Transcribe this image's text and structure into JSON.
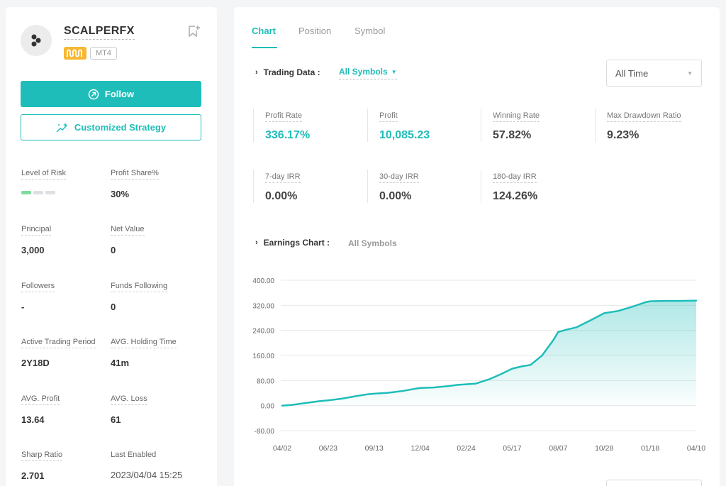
{
  "profile": {
    "name": "SCALPERFX",
    "platform_badge": "MT4",
    "follow_label": "Follow",
    "custom_strategy_label": "Customized Strategy"
  },
  "stats": {
    "risk_label": "Level of Risk",
    "risk_level": 1,
    "risk_max": 3,
    "profit_share_label": "Profit Share%",
    "profit_share": "30%",
    "principal_label": "Principal",
    "principal": "3,000",
    "net_value_label": "Net Value",
    "net_value": "0",
    "followers_label": "Followers",
    "followers": "-",
    "funds_following_label": "Funds Following",
    "funds_following": "0",
    "active_period_label": "Active Trading Period",
    "active_period": "2Y18D",
    "avg_holding_label": "AVG. Holding Time",
    "avg_holding": "41m",
    "avg_profit_label": "AVG. Profit",
    "avg_profit": "13.64",
    "avg_loss_label": "AVG. Loss",
    "avg_loss": "61",
    "sharp_ratio_label": "Sharp Ratio",
    "sharp_ratio": "2.701",
    "last_enabled_label": "Last Enabled",
    "last_enabled": "2023/04/04 15:25"
  },
  "tabs": [
    {
      "label": "Chart",
      "active": true
    },
    {
      "label": "Position",
      "active": false
    },
    {
      "label": "Symbol",
      "active": false
    }
  ],
  "trading_data": {
    "title": "Trading Data :",
    "symbol_filter": "All Symbols",
    "time_filter": "All Time",
    "metrics": [
      {
        "label": "Profit Rate",
        "value": "336.17%"
      },
      {
        "label": "Profit",
        "value": "10,085.23"
      },
      {
        "label": "Winning Rate",
        "value": "57.82%"
      },
      {
        "label": "Max Drawdown Ratio",
        "value": "9.23%"
      },
      {
        "label": "7-day IRR",
        "value": "0.00%"
      },
      {
        "label": "30-day IRR",
        "value": "0.00%"
      },
      {
        "label": "180-day IRR",
        "value": "124.26%"
      }
    ]
  },
  "earnings": {
    "title": "Earnings Chart :",
    "symbol": "All Symbols"
  },
  "colors": {
    "accent": "#1fbdb9",
    "badge_signal": "#f7b733",
    "risk_on": "#7ddc9e"
  },
  "icons": {
    "avatar": "logo-dots-icon",
    "signal": "signal-wave-icon",
    "bookmark": "bookmark-add-icon",
    "follow": "arrow-circle-icon",
    "custom": "sparkle-chart-icon"
  },
  "chart_data": {
    "type": "area",
    "title": "",
    "xlabel": "",
    "ylabel": "",
    "x_ticks": [
      "04/02",
      "06/23",
      "09/13",
      "12/04",
      "02/24",
      "05/17",
      "08/07",
      "10/28",
      "01/18",
      "04/10"
    ],
    "y_ticks": [
      "400.00",
      "320.00",
      "240.00",
      "160.00",
      "80.00",
      "0.00",
      "-80.00"
    ],
    "ylim": [
      -80,
      400
    ],
    "grid": true,
    "series": [
      {
        "x": [
          0,
          0.2,
          0.5,
          0.8,
          1.0,
          1.3,
          1.6,
          1.85,
          2.0,
          2.3,
          2.6,
          2.9,
          3.0,
          3.3,
          3.6,
          3.8,
          4.0,
          4.2,
          4.5,
          4.75,
          5.0,
          5.2,
          5.4,
          5.65,
          5.9,
          6.0,
          6.2,
          6.4,
          6.7,
          7.0,
          7.3,
          7.6,
          7.9,
          8.0,
          8.3,
          8.6,
          9.0
        ],
        "y": [
          0,
          2,
          8,
          14,
          17,
          22,
          30,
          36,
          38,
          41,
          46,
          54,
          56,
          58,
          62,
          66,
          68,
          70,
          84,
          100,
          118,
          125,
          130,
          160,
          210,
          235,
          243,
          250,
          272,
          295,
          302,
          315,
          330,
          333,
          334,
          334,
          335
        ]
      }
    ]
  }
}
